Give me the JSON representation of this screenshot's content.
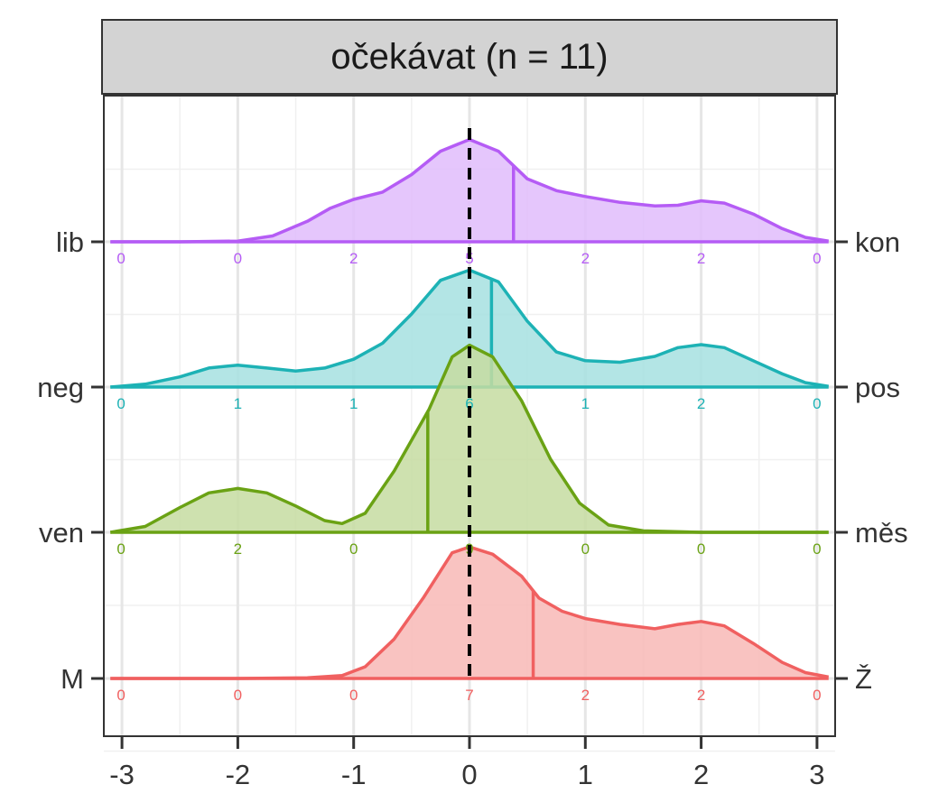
{
  "chart_data": {
    "type": "ridgeline",
    "title": "očekávat (n = 11)",
    "x_ticks": [
      "-3",
      "-2",
      "-1",
      "0",
      "1",
      "2",
      "3"
    ],
    "xlim": [
      -3,
      3
    ],
    "reference_line_x": 0,
    "grid": true,
    "count_positions": [
      -3,
      -2,
      -1,
      0,
      1,
      2,
      3
    ],
    "series": [
      {
        "left_label": "lib",
        "right_label": "kon",
        "color": "#B55CF5",
        "fill": "#E1BCFC",
        "marker_x": 0.38,
        "counts": [
          "0",
          "0",
          "2",
          "5",
          "2",
          "2",
          "0"
        ],
        "density": [
          [
            -3.1,
            0
          ],
          [
            -2.5,
            0
          ],
          [
            -2,
            0.005
          ],
          [
            -1.7,
            0.04
          ],
          [
            -1.4,
            0.14
          ],
          [
            -1.2,
            0.23
          ],
          [
            -1,
            0.29
          ],
          [
            -0.75,
            0.34
          ],
          [
            -0.5,
            0.46
          ],
          [
            -0.25,
            0.62
          ],
          [
            0,
            0.7
          ],
          [
            0.25,
            0.62
          ],
          [
            0.5,
            0.43
          ],
          [
            0.75,
            0.35
          ],
          [
            1,
            0.31
          ],
          [
            1.3,
            0.27
          ],
          [
            1.6,
            0.245
          ],
          [
            1.8,
            0.25
          ],
          [
            2,
            0.28
          ],
          [
            2.2,
            0.265
          ],
          [
            2.45,
            0.19
          ],
          [
            2.7,
            0.09
          ],
          [
            2.9,
            0.03
          ],
          [
            3.1,
            0.005
          ]
        ]
      },
      {
        "left_label": "neg",
        "right_label": "pos",
        "color": "#1DB2B5",
        "fill": "#A6E0E1",
        "marker_x": 0.19,
        "counts": [
          "0",
          "1",
          "1",
          "6",
          "1",
          "2",
          "0"
        ],
        "density": [
          [
            -3.1,
            0
          ],
          [
            -2.8,
            0.02
          ],
          [
            -2.5,
            0.07
          ],
          [
            -2.25,
            0.13
          ],
          [
            -2,
            0.15
          ],
          [
            -1.75,
            0.13
          ],
          [
            -1.5,
            0.11
          ],
          [
            -1.25,
            0.13
          ],
          [
            -1,
            0.19
          ],
          [
            -0.75,
            0.3
          ],
          [
            -0.5,
            0.5
          ],
          [
            -0.25,
            0.73
          ],
          [
            0,
            0.8
          ],
          [
            0.25,
            0.72
          ],
          [
            0.5,
            0.45
          ],
          [
            0.75,
            0.24
          ],
          [
            1,
            0.18
          ],
          [
            1.3,
            0.17
          ],
          [
            1.6,
            0.21
          ],
          [
            1.8,
            0.27
          ],
          [
            2,
            0.29
          ],
          [
            2.2,
            0.27
          ],
          [
            2.45,
            0.18
          ],
          [
            2.7,
            0.09
          ],
          [
            2.9,
            0.03
          ],
          [
            3.1,
            0.005
          ]
        ]
      },
      {
        "left_label": "ven",
        "right_label": "měs",
        "color": "#6AA214",
        "fill": "#C6DCA1",
        "marker_x": -0.36,
        "counts": [
          "0",
          "2",
          "0",
          "9",
          "0",
          "0",
          "0"
        ],
        "density": [
          [
            -3.1,
            0
          ],
          [
            -2.8,
            0.04
          ],
          [
            -2.5,
            0.17
          ],
          [
            -2.25,
            0.27
          ],
          [
            -2,
            0.3
          ],
          [
            -1.75,
            0.27
          ],
          [
            -1.5,
            0.18
          ],
          [
            -1.25,
            0.08
          ],
          [
            -1.1,
            0.06
          ],
          [
            -0.9,
            0.13
          ],
          [
            -0.65,
            0.42
          ],
          [
            -0.35,
            0.84
          ],
          [
            -0.15,
            1.2
          ],
          [
            0,
            1.28
          ],
          [
            0.2,
            1.2
          ],
          [
            0.45,
            0.9
          ],
          [
            0.7,
            0.5
          ],
          [
            0.95,
            0.2
          ],
          [
            1.2,
            0.05
          ],
          [
            1.5,
            0.01
          ],
          [
            2,
            0
          ],
          [
            3.1,
            0
          ]
        ]
      },
      {
        "left_label": "M",
        "right_label": "Ž",
        "color": "#F06060",
        "fill": "#F8B9B6",
        "marker_x": 0.55,
        "counts": [
          "0",
          "0",
          "0",
          "7",
          "2",
          "2",
          "0"
        ],
        "density": [
          [
            -3.1,
            0
          ],
          [
            -2,
            0
          ],
          [
            -1.4,
            0.005
          ],
          [
            -1.1,
            0.02
          ],
          [
            -0.9,
            0.08
          ],
          [
            -0.65,
            0.27
          ],
          [
            -0.4,
            0.55
          ],
          [
            -0.15,
            0.86
          ],
          [
            0,
            0.9
          ],
          [
            0.2,
            0.85
          ],
          [
            0.45,
            0.7
          ],
          [
            0.6,
            0.55
          ],
          [
            0.8,
            0.46
          ],
          [
            1,
            0.41
          ],
          [
            1.3,
            0.37
          ],
          [
            1.6,
            0.34
          ],
          [
            1.8,
            0.37
          ],
          [
            2,
            0.39
          ],
          [
            2.2,
            0.36
          ],
          [
            2.45,
            0.24
          ],
          [
            2.7,
            0.11
          ],
          [
            2.9,
            0.04
          ],
          [
            3.1,
            0.01
          ]
        ]
      }
    ]
  }
}
